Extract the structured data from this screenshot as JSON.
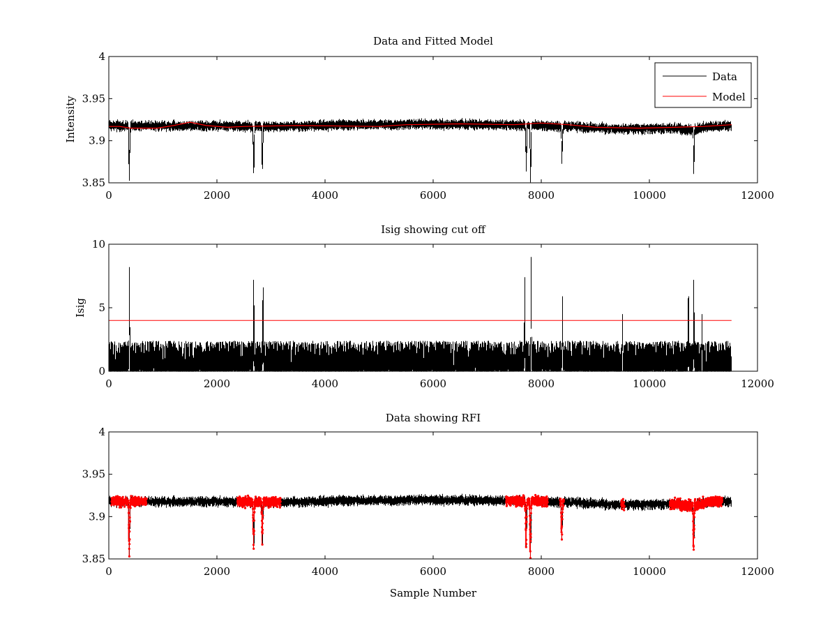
{
  "figure": {
    "background": "#ffffff",
    "data_color": "#000000",
    "model_color": "#ff0000",
    "rfi_color": "#ff0000"
  },
  "chart_data": [
    {
      "type": "line",
      "title": "Data and Fitted Model",
      "xlabel": "",
      "ylabel": "Intensity",
      "xlim": [
        0,
        12000
      ],
      "ylim": [
        3.85,
        4
      ],
      "xticks": [
        "0",
        "2000",
        "4000",
        "6000",
        "8000",
        "10000",
        "12000"
      ],
      "yticks": [
        "3.85",
        "3.9",
        "3.95",
        "4"
      ],
      "ytick_values": [
        3.85,
        3.9,
        3.95,
        4
      ],
      "legend": {
        "placement": "top-right",
        "entries": [
          "Data",
          "Model"
        ]
      },
      "series": [
        {
          "name": "Data",
          "color": "#000000",
          "n_samples": 11520,
          "baseline_points": [
            [
              0,
              3.918
            ],
            [
              1500,
              3.918
            ],
            [
              3000,
              3.917
            ],
            [
              4500,
              3.919
            ],
            [
              6000,
              3.92
            ],
            [
              7500,
              3.919
            ],
            [
              8500,
              3.917
            ],
            [
              9500,
              3.914
            ],
            [
              10500,
              3.915
            ],
            [
              11520,
              3.918
            ]
          ],
          "noise_amplitude": 0.008,
          "dips": [
            [
              380,
              3.853
            ],
            [
              2680,
              3.862
            ],
            [
              2840,
              3.867
            ],
            [
              7720,
              3.864
            ],
            [
              7800,
              3.851
            ],
            [
              8380,
              3.873
            ],
            [
              10820,
              3.861
            ]
          ]
        },
        {
          "name": "Model",
          "color": "#ff0000",
          "points": [
            [
              0,
              3.917
            ],
            [
              200,
              3.917
            ],
            [
              400,
              3.915
            ],
            [
              900,
              3.915
            ],
            [
              1200,
              3.918
            ],
            [
              1500,
              3.922
            ],
            [
              1800,
              3.918
            ],
            [
              2200,
              3.916
            ],
            [
              2500,
              3.917
            ],
            [
              3500,
              3.918
            ],
            [
              5000,
              3.917
            ],
            [
              5500,
              3.919
            ],
            [
              6500,
              3.92
            ],
            [
              7500,
              3.919
            ],
            [
              8000,
              3.921
            ],
            [
              8500,
              3.919
            ],
            [
              9000,
              3.916
            ],
            [
              9800,
              3.915
            ],
            [
              10500,
              3.916
            ],
            [
              11000,
              3.917
            ],
            [
              11520,
              3.919
            ]
          ]
        }
      ]
    },
    {
      "type": "line",
      "title": "Isig showing cut off",
      "xlabel": "",
      "ylabel": "Isig",
      "xlim": [
        0,
        12000
      ],
      "ylim": [
        0,
        10
      ],
      "xticks": [
        "0",
        "2000",
        "4000",
        "6000",
        "8000",
        "10000",
        "12000"
      ],
      "yticks": [
        "0",
        "5",
        "10"
      ],
      "ytick_values": [
        0,
        5,
        10
      ],
      "series": [
        {
          "name": "Isig",
          "color": "#000000",
          "n_samples": 11520,
          "noise_amplitude": 2.4,
          "spikes": [
            [
              380,
              8.2
            ],
            [
              2680,
              7.2
            ],
            [
              2850,
              6.6
            ],
            [
              7690,
              7.4
            ],
            [
              7810,
              9.0
            ],
            [
              8390,
              5.9
            ],
            [
              9500,
              4.5
            ],
            [
              10720,
              5.9
            ],
            [
              10820,
              7.2
            ],
            [
              10970,
              4.5
            ]
          ]
        },
        {
          "name": "Cut off",
          "color": "#ff0000",
          "points": [
            [
              0,
              4
            ],
            [
              11520,
              4
            ]
          ]
        }
      ]
    },
    {
      "type": "line",
      "title": "Data showing RFI",
      "xlabel": "Sample Number",
      "ylabel": "",
      "xlim": [
        0,
        12000
      ],
      "ylim": [
        3.85,
        4
      ],
      "xticks": [
        "0",
        "2000",
        "4000",
        "6000",
        "8000",
        "10000",
        "12000"
      ],
      "yticks": [
        "3.85",
        "3.9",
        "3.95",
        "4"
      ],
      "ytick_values": [
        3.85,
        3.9,
        3.95,
        4
      ],
      "series": [
        {
          "name": "Data",
          "color": "#000000",
          "n_samples": 11520
        },
        {
          "name": "RFI",
          "color": "#ff0000",
          "marker": "dot",
          "flagged_ranges": [
            [
              50,
              700
            ],
            [
              2380,
              3180
            ],
            [
              7350,
              8120
            ],
            [
              8350,
              8420
            ],
            [
              9480,
              9540
            ],
            [
              10380,
              11350
            ]
          ]
        }
      ]
    }
  ]
}
